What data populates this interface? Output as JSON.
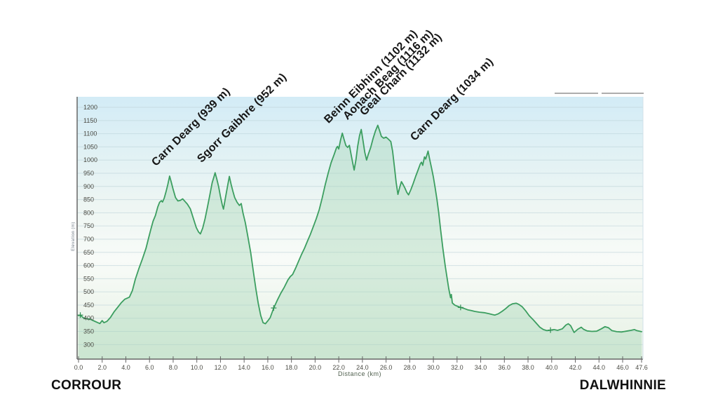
{
  "route": {
    "start": "CORROUR",
    "end": "DALWHINNIE"
  },
  "chart_data": {
    "type": "area",
    "title": "",
    "xlabel": "Distance (km)",
    "ylabel": "Elevation (m)",
    "xlim": [
      0,
      47.6
    ],
    "ylim": [
      245,
      1240
    ],
    "grid": "horizontal",
    "legend_position": "none",
    "x_ticks": [
      0,
      2,
      4,
      6,
      8,
      10,
      12,
      14,
      16,
      18,
      20,
      22,
      24,
      26,
      28,
      30,
      32,
      34,
      36,
      38,
      40,
      42,
      44,
      46,
      47.6
    ],
    "y_ticks": [
      300,
      350,
      400,
      450,
      500,
      550,
      600,
      650,
      700,
      750,
      800,
      850,
      900,
      950,
      1000,
      1050,
      1100,
      1150,
      1200
    ],
    "colors": {
      "line": "#3c9e60",
      "fill": "rgba(168,214,183,0.42)",
      "waypoint": "#2f8e52",
      "grid": "#bcd2d8",
      "axis": "#666666",
      "tick_text": "#4b4b44",
      "bg_stops": [
        "#d3ecf6",
        "#eef6f3",
        "#f8fbf8",
        "#e6f1e4"
      ]
    },
    "peak_labels": [
      {
        "label": "Carn Dearg (939 m)",
        "km": 7.7,
        "elev": 939
      },
      {
        "label": "Sgorr Gaibhre (952 m)",
        "km": 11.55,
        "elev": 952
      },
      {
        "label": "Beinn Eibhinn (1102 m)",
        "km": 22.3,
        "elev": 1102
      },
      {
        "label": "Aonach Beag (1116 m)",
        "km": 23.9,
        "elev": 1116
      },
      {
        "label": "Geal Charn (1132 m)",
        "km": 25.3,
        "elev": 1132
      },
      {
        "label": "Carn Dearg (1034 m)",
        "km": 29.55,
        "elev": 1034
      }
    ],
    "waypoint_markers": [
      {
        "km": 0.15,
        "elev": 412
      },
      {
        "km": 16.5,
        "elev": 439
      },
      {
        "km": 32.3,
        "elev": 441
      },
      {
        "km": 39.9,
        "elev": 355
      }
    ],
    "profile": [
      [
        0.0,
        410
      ],
      [
        0.15,
        412
      ],
      [
        0.4,
        402
      ],
      [
        0.7,
        398
      ],
      [
        1.0,
        396
      ],
      [
        1.3,
        390
      ],
      [
        1.6,
        384
      ],
      [
        1.8,
        380
      ],
      [
        2.0,
        391
      ],
      [
        2.15,
        383
      ],
      [
        2.4,
        388
      ],
      [
        2.7,
        403
      ],
      [
        3.0,
        424
      ],
      [
        3.3,
        441
      ],
      [
        3.6,
        458
      ],
      [
        3.9,
        472
      ],
      [
        4.1,
        476
      ],
      [
        4.3,
        480
      ],
      [
        4.55,
        505
      ],
      [
        4.8,
        548
      ],
      [
        5.1,
        588
      ],
      [
        5.4,
        625
      ],
      [
        5.7,
        665
      ],
      [
        5.9,
        700
      ],
      [
        6.1,
        735
      ],
      [
        6.3,
        768
      ],
      [
        6.5,
        790
      ],
      [
        6.7,
        822
      ],
      [
        6.85,
        840
      ],
      [
        7.0,
        846
      ],
      [
        7.1,
        841
      ],
      [
        7.25,
        856
      ],
      [
        7.4,
        880
      ],
      [
        7.55,
        908
      ],
      [
        7.7,
        939
      ],
      [
        7.85,
        915
      ],
      [
        8.0,
        888
      ],
      [
        8.2,
        858
      ],
      [
        8.4,
        845
      ],
      [
        8.6,
        847
      ],
      [
        8.8,
        853
      ],
      [
        9.0,
        843
      ],
      [
        9.2,
        833
      ],
      [
        9.45,
        815
      ],
      [
        9.7,
        780
      ],
      [
        9.95,
        744
      ],
      [
        10.15,
        727
      ],
      [
        10.3,
        720
      ],
      [
        10.5,
        742
      ],
      [
        10.7,
        778
      ],
      [
        10.9,
        822
      ],
      [
        11.1,
        868
      ],
      [
        11.3,
        914
      ],
      [
        11.45,
        937
      ],
      [
        11.55,
        952
      ],
      [
        11.7,
        926
      ],
      [
        11.85,
        898
      ],
      [
        12.0,
        862
      ],
      [
        12.15,
        830
      ],
      [
        12.25,
        814
      ],
      [
        12.4,
        852
      ],
      [
        12.6,
        902
      ],
      [
        12.75,
        938
      ],
      [
        12.9,
        908
      ],
      [
        13.05,
        881
      ],
      [
        13.2,
        858
      ],
      [
        13.4,
        840
      ],
      [
        13.6,
        828
      ],
      [
        13.75,
        835
      ],
      [
        13.9,
        800
      ],
      [
        14.1,
        762
      ],
      [
        14.3,
        714
      ],
      [
        14.55,
        650
      ],
      [
        14.8,
        570
      ],
      [
        15.0,
        510
      ],
      [
        15.2,
        455
      ],
      [
        15.4,
        411
      ],
      [
        15.6,
        383
      ],
      [
        15.8,
        379
      ],
      [
        16.0,
        390
      ],
      [
        16.2,
        402
      ],
      [
        16.5,
        439
      ],
      [
        16.8,
        468
      ],
      [
        17.1,
        495
      ],
      [
        17.4,
        518
      ],
      [
        17.7,
        545
      ],
      [
        17.9,
        558
      ],
      [
        18.1,
        566
      ],
      [
        18.35,
        590
      ],
      [
        18.6,
        616
      ],
      [
        18.85,
        642
      ],
      [
        19.1,
        665
      ],
      [
        19.35,
        692
      ],
      [
        19.6,
        718
      ],
      [
        19.85,
        748
      ],
      [
        20.1,
        778
      ],
      [
        20.35,
        812
      ],
      [
        20.6,
        856
      ],
      [
        20.85,
        905
      ],
      [
        21.1,
        950
      ],
      [
        21.35,
        990
      ],
      [
        21.6,
        1020
      ],
      [
        21.8,
        1046
      ],
      [
        21.9,
        1052
      ],
      [
        22.0,
        1042
      ],
      [
        22.15,
        1076
      ],
      [
        22.3,
        1102
      ],
      [
        22.45,
        1078
      ],
      [
        22.6,
        1055
      ],
      [
        22.75,
        1048
      ],
      [
        22.9,
        1056
      ],
      [
        23.05,
        1020
      ],
      [
        23.2,
        984
      ],
      [
        23.3,
        962
      ],
      [
        23.45,
        1000
      ],
      [
        23.6,
        1052
      ],
      [
        23.75,
        1092
      ],
      [
        23.9,
        1116
      ],
      [
        24.05,
        1074
      ],
      [
        24.2,
        1030
      ],
      [
        24.35,
        1000
      ],
      [
        24.5,
        1022
      ],
      [
        24.7,
        1048
      ],
      [
        24.9,
        1082
      ],
      [
        25.1,
        1110
      ],
      [
        25.3,
        1132
      ],
      [
        25.45,
        1112
      ],
      [
        25.6,
        1090
      ],
      [
        25.8,
        1083
      ],
      [
        26.0,
        1087
      ],
      [
        26.2,
        1079
      ],
      [
        26.4,
        1070
      ],
      [
        26.55,
        1034
      ],
      [
        26.7,
        977
      ],
      [
        26.85,
        915
      ],
      [
        27.0,
        870
      ],
      [
        27.15,
        896
      ],
      [
        27.3,
        918
      ],
      [
        27.45,
        906
      ],
      [
        27.6,
        893
      ],
      [
        27.75,
        878
      ],
      [
        27.9,
        868
      ],
      [
        28.1,
        888
      ],
      [
        28.3,
        912
      ],
      [
        28.5,
        938
      ],
      [
        28.7,
        962
      ],
      [
        28.9,
        986
      ],
      [
        29.0,
        992
      ],
      [
        29.1,
        980
      ],
      [
        29.25,
        1012
      ],
      [
        29.35,
        1004
      ],
      [
        29.55,
        1034
      ],
      [
        29.7,
        1000
      ],
      [
        29.85,
        968
      ],
      [
        30.0,
        935
      ],
      [
        30.15,
        895
      ],
      [
        30.3,
        850
      ],
      [
        30.45,
        800
      ],
      [
        30.6,
        740
      ],
      [
        30.8,
        665
      ],
      [
        31.0,
        598
      ],
      [
        31.15,
        555
      ],
      [
        31.3,
        512
      ],
      [
        31.45,
        478
      ],
      [
        31.52,
        490
      ],
      [
        31.6,
        458
      ],
      [
        31.8,
        450
      ],
      [
        32.0,
        446
      ],
      [
        32.3,
        441
      ],
      [
        32.6,
        437
      ],
      [
        32.9,
        432
      ],
      [
        33.2,
        429
      ],
      [
        33.5,
        426
      ],
      [
        33.9,
        423
      ],
      [
        34.3,
        421
      ],
      [
        34.7,
        417
      ],
      [
        35.0,
        414
      ],
      [
        35.2,
        412
      ],
      [
        35.5,
        417
      ],
      [
        35.8,
        426
      ],
      [
        36.1,
        436
      ],
      [
        36.4,
        448
      ],
      [
        36.7,
        455
      ],
      [
        37.0,
        457
      ],
      [
        37.2,
        453
      ],
      [
        37.5,
        444
      ],
      [
        37.8,
        428
      ],
      [
        38.1,
        410
      ],
      [
        38.4,
        396
      ],
      [
        38.7,
        381
      ],
      [
        39.0,
        366
      ],
      [
        39.3,
        357
      ],
      [
        39.6,
        353
      ],
      [
        39.9,
        355
      ],
      [
        40.2,
        357
      ],
      [
        40.5,
        354
      ],
      [
        40.9,
        360
      ],
      [
        41.2,
        374
      ],
      [
        41.4,
        379
      ],
      [
        41.6,
        372
      ],
      [
        41.9,
        346
      ],
      [
        42.2,
        358
      ],
      [
        42.5,
        366
      ],
      [
        42.7,
        358
      ],
      [
        43.0,
        352
      ],
      [
        43.4,
        350
      ],
      [
        43.8,
        351
      ],
      [
        44.2,
        360
      ],
      [
        44.5,
        368
      ],
      [
        44.8,
        364
      ],
      [
        45.1,
        353
      ],
      [
        45.5,
        349
      ],
      [
        45.9,
        348
      ],
      [
        46.3,
        351
      ],
      [
        46.7,
        354
      ],
      [
        47.0,
        357
      ],
      [
        47.2,
        353
      ],
      [
        47.6,
        349
      ]
    ]
  }
}
